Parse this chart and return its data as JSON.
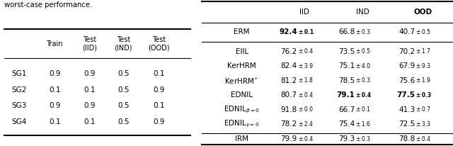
{
  "title_text": "worst-case performance.",
  "left_table": {
    "col_headers": [
      "",
      "Train",
      "Test\n(IID)",
      "Test\n(IND)",
      "Test\n(OOD)"
    ],
    "rows": [
      [
        "SG1",
        "0.9",
        "0.9",
        "0.5",
        "0.1"
      ],
      [
        "SG2",
        "0.1",
        "0.1",
        "0.5",
        "0.9"
      ],
      [
        "SG3",
        "0.9",
        "0.9",
        "0.5",
        "0.1"
      ],
      [
        "SG4",
        "0.1",
        "0.1",
        "0.5",
        "0.9"
      ]
    ]
  },
  "right_table": {
    "col_headers": [
      "",
      "IID",
      "IND",
      "OOD"
    ],
    "col_bold": [
      false,
      false,
      false,
      true
    ],
    "sections": [
      {
        "rows": [
          {
            "name": "ERM",
            "iid": "92.4",
            "iid_pm": "0.1",
            "iid_bold": true,
            "ind": "66.8",
            "ind_pm": "0.3",
            "ind_bold": false,
            "ood": "40.7",
            "ood_pm": "0.5",
            "ood_bold": false
          }
        ]
      },
      {
        "rows": [
          {
            "name": "EIIL",
            "iid": "76.2",
            "iid_pm": "0.4",
            "iid_bold": false,
            "ind": "73.5",
            "ind_pm": "0.5",
            "ind_bold": false,
            "ood": "70.2",
            "ood_pm": "1.7",
            "ood_bold": false
          },
          {
            "name": "KerHRM",
            "iid": "82.4",
            "iid_pm": "3.9",
            "iid_bold": false,
            "ind": "75.1",
            "ind_pm": "4.0",
            "ind_bold": false,
            "ood": "67.9",
            "ood_pm": "9.3",
            "ood_bold": false
          },
          {
            "name": "KerHRM*",
            "iid": "81.2",
            "iid_pm": "1.8",
            "iid_bold": false,
            "ind": "78.5",
            "ind_pm": "0.3",
            "ind_bold": false,
            "ood": "75.6",
            "ood_pm": "1.9",
            "ood_bold": false
          },
          {
            "name": "EDNIL",
            "iid": "80.7",
            "iid_pm": "0.4",
            "iid_bold": false,
            "ind": "79.1",
            "ind_pm": "0.4",
            "ind_bold": true,
            "ood": "77.5",
            "ood_pm": "0.3",
            "ood_bold": true
          },
          {
            "name": "EDNIL_beta0",
            "iid": "91.8",
            "iid_pm": "0.0",
            "iid_bold": false,
            "ind": "66.7",
            "ind_pm": "0.1",
            "ind_bold": false,
            "ood": "41.3",
            "ood_pm": "0.7",
            "ood_bold": false
          },
          {
            "name": "EDNIL_gamma0",
            "iid": "78.2",
            "iid_pm": "2.4",
            "iid_bold": false,
            "ind": "75.4",
            "ind_pm": "1.6",
            "ind_bold": false,
            "ood": "72.5",
            "ood_pm": "3.3",
            "ood_bold": false
          }
        ]
      },
      {
        "rows": [
          {
            "name": "IRM",
            "iid": "79.9",
            "iid_pm": "0.4",
            "iid_bold": false,
            "ind": "79.3",
            "ind_pm": "0.3",
            "ind_bold": false,
            "ood": "78.8",
            "ood_pm": "0.4",
            "ood_bold": false
          }
        ]
      }
    ]
  },
  "bg_color": "#ffffff",
  "text_color": "#000000",
  "line_color": "#000000"
}
